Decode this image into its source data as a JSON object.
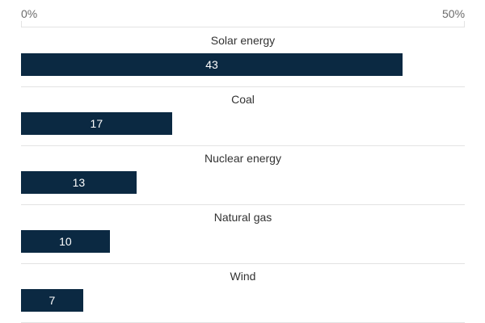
{
  "chart_data": {
    "type": "bar",
    "orientation": "horizontal",
    "categories": [
      "Solar energy",
      "Coal",
      "Nuclear energy",
      "Natural gas",
      "Wind"
    ],
    "values": [
      43,
      17,
      13,
      10,
      7
    ],
    "value_labels": [
      "43",
      "17",
      "13",
      "10",
      "7"
    ],
    "xlim": [
      0,
      50
    ],
    "ticks": [
      {
        "value": 0,
        "label": "0%"
      },
      {
        "value": 50,
        "label": "50%"
      }
    ],
    "colors": {
      "bar": "#0b2942",
      "bar_text": "#ffffff",
      "grid": "#e3e3e3"
    },
    "grid": true,
    "legend": "none"
  }
}
